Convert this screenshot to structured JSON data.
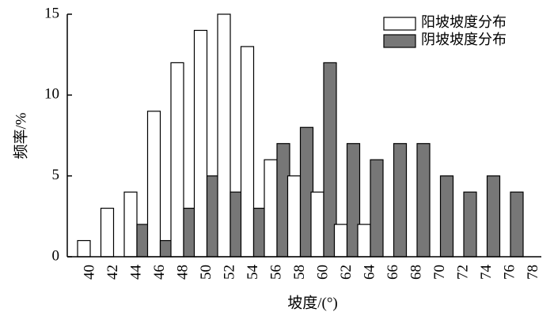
{
  "chart_data": {
    "type": "bar",
    "xlabel": "坡度/(°)",
    "ylabel": "频率/%",
    "categories": [
      "40",
      "42",
      "44",
      "46",
      "48",
      "50",
      "52",
      "54",
      "56",
      "58",
      "60",
      "62",
      "64",
      "66",
      "68",
      "70",
      "72",
      "74",
      "76",
      "78"
    ],
    "series": [
      {
        "name": "阳坡坡度分布",
        "color": "#ffffff",
        "values": [
          1,
          3,
          4,
          9,
          12,
          14,
          15,
          13,
          6,
          5,
          4,
          2,
          2,
          0,
          0,
          0,
          0,
          0,
          0,
          0
        ]
      },
      {
        "name": "阴坡坡度分布",
        "color": "#777777",
        "values": [
          0,
          0,
          2,
          1,
          3,
          5,
          4,
          3,
          7,
          8,
          12,
          7,
          6,
          7,
          7,
          5,
          4,
          5,
          4,
          0
        ]
      }
    ],
    "ylim": [
      0,
      15
    ],
    "yticks": [
      0,
      5,
      10,
      15
    ],
    "legend": "upper right"
  }
}
